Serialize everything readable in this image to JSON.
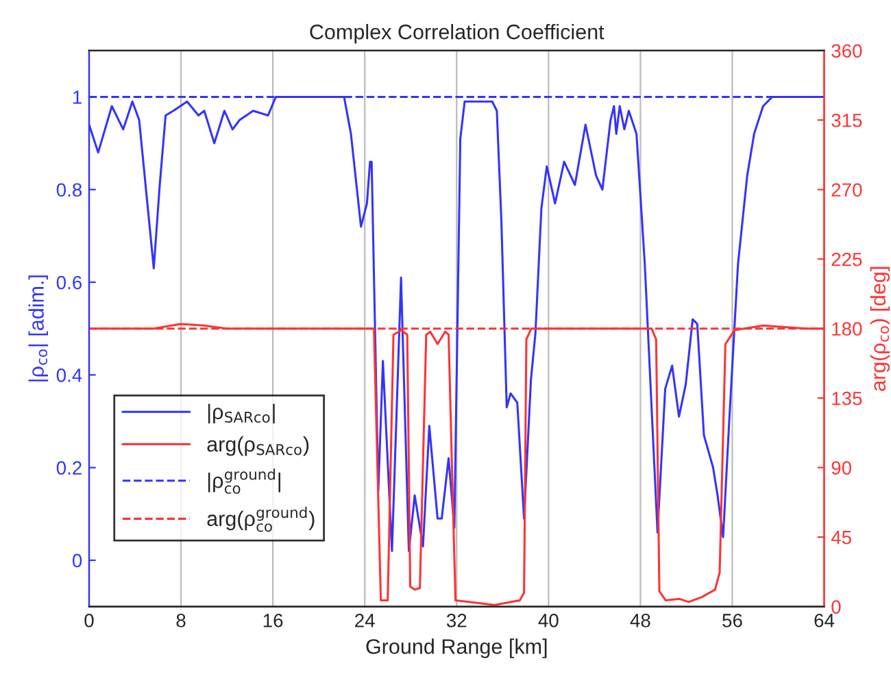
{
  "chart_data": {
    "type": "line",
    "title": "Complex Correlation Coefficient",
    "xlabel": "Ground Range [km]",
    "ylabel": "|ρ$_{co}$| [adim.]",
    "y2label": "arg(ρ$_{co}$) [deg]",
    "xlim": [
      0,
      64
    ],
    "xticks": [
      0,
      8,
      16,
      24,
      32,
      40,
      48,
      56,
      64
    ],
    "ylim": [
      -0.1,
      1.1
    ],
    "yticks": [
      0,
      0.2,
      0.4,
      0.6,
      0.8,
      1
    ],
    "y2lim": [
      0,
      360
    ],
    "y2ticks": [
      0,
      45,
      90,
      135,
      180,
      225,
      270,
      315,
      360
    ],
    "grid": "x",
    "legend": "bottom left",
    "marker": "none",
    "series": [
      {
        "name": "|ρ$_{SARco}$|",
        "color": "#3333ff",
        "line_style": "solid",
        "x": [
          0,
          0.79,
          1.98,
          2.97,
          3.77,
          4.36,
          5.63,
          6.15,
          6.66,
          7.34,
          8.53,
          9.52,
          10.03,
          10.9,
          11.78,
          12.49,
          13.1,
          14.28,
          15.58,
          16.26,
          22.2,
          22.8,
          23.67,
          24.19,
          24.46,
          24.6,
          25.18,
          25.58,
          26.37,
          27.16,
          27.84,
          28.35,
          29.07,
          29.62,
          30.34,
          30.7,
          31.3,
          31.8,
          32.32,
          32.7,
          35.1,
          35.5,
          35.9,
          36.36,
          36.7,
          37.28,
          37.87,
          38.47,
          38.86,
          39.38,
          39.85,
          40.57,
          41.36,
          42.3,
          43.22,
          44.14,
          44.69,
          45.4,
          45.7,
          45.9,
          46.2,
          46.6,
          46.99,
          47.66,
          48.38,
          49.49,
          50.16,
          50.76,
          51.36,
          51.95,
          52.55,
          52.95,
          53.53,
          54.33,
          54.72,
          55.2,
          55.71,
          56.5,
          57.3,
          57.9,
          58.68,
          59.48,
          64
        ],
        "values": [
          0.94,
          0.88,
          0.98,
          0.93,
          0.99,
          0.95,
          0.63,
          0.81,
          0.96,
          0.97,
          0.99,
          0.96,
          0.97,
          0.9,
          0.97,
          0.93,
          0.95,
          0.97,
          0.96,
          1,
          1,
          0.92,
          0.72,
          0.77,
          0.86,
          0.86,
          0.15,
          0.43,
          0.02,
          0.61,
          0.02,
          0.14,
          0.03,
          0.29,
          0.09,
          0.09,
          0.22,
          0.07,
          0.91,
          0.99,
          0.99,
          0.97,
          0.73,
          0.33,
          0.36,
          0.34,
          0.09,
          0.39,
          0.49,
          0.76,
          0.85,
          0.77,
          0.86,
          0.81,
          0.94,
          0.83,
          0.8,
          0.95,
          0.98,
          0.92,
          0.98,
          0.93,
          0.97,
          0.92,
          0.64,
          0.06,
          0.37,
          0.42,
          0.31,
          0.38,
          0.52,
          0.51,
          0.27,
          0.2,
          0.14,
          0.05,
          0.29,
          0.64,
          0.83,
          0.92,
          0.98,
          1,
          1
        ]
      },
      {
        "name": "arg(ρ$_{SARco}$)",
        "color": "#ff3333",
        "line_style": "solid",
        "axis": "y2",
        "x": [
          0,
          5.6,
          8,
          10,
          12,
          24.8,
          25.4,
          26,
          26.5,
          27.2,
          27.7,
          27.96,
          28.35,
          28.8,
          29.35,
          29.7,
          30.34,
          31,
          31.3,
          31.72,
          31.9,
          35.3,
          37.5,
          37.87,
          38.07,
          38.5,
          48.97,
          49.37,
          49.65,
          50.2,
          51.4,
          52.2,
          53.3,
          54.5,
          54.9,
          55.4,
          56.2,
          58.7,
          60.5,
          62.5,
          64
        ],
        "values": [
          180,
          180,
          183,
          182,
          180,
          180,
          4,
          4,
          176,
          179,
          176,
          13,
          11,
          12,
          176,
          178,
          170,
          178,
          176,
          54,
          4,
          1,
          4,
          9,
          173,
          180,
          180,
          173,
          10,
          4,
          5,
          3,
          6,
          11,
          22,
          170,
          179,
          182,
          181,
          180,
          180
        ]
      },
      {
        "name": "|ρ$^{ground}$$_{co}$|",
        "color": "#3333ff",
        "line_style": "dashed",
        "x": [
          0,
          64
        ],
        "values": [
          1,
          1
        ]
      },
      {
        "name": "arg(ρ$^{ground}$$_{co}$)",
        "color": "#ff3333",
        "line_style": "dashed",
        "axis": "y2",
        "x": [
          0,
          64
        ],
        "values": [
          180,
          180
        ]
      }
    ]
  }
}
